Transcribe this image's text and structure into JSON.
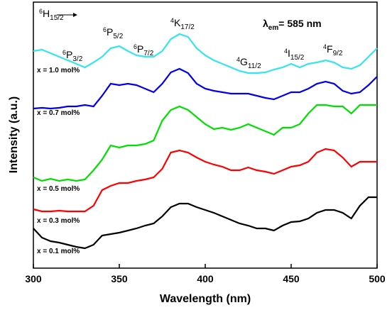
{
  "chart_data": {
    "type": "line",
    "xlabel": "Wavelength (nm)",
    "ylabel": "Intensity (a.u.)",
    "xlim": [
      300,
      500
    ],
    "ylim": [
      0,
      375
    ],
    "xticks": [
      300,
      350,
      400,
      450,
      500
    ],
    "x": [
      300,
      305,
      310,
      315,
      320,
      325,
      330,
      335,
      340,
      345,
      350,
      355,
      360,
      365,
      370,
      375,
      380,
      385,
      390,
      395,
      400,
      405,
      410,
      415,
      420,
      425,
      430,
      435,
      440,
      445,
      450,
      455,
      460,
      465,
      470,
      475,
      480,
      485,
      490,
      495,
      500
    ],
    "series": [
      {
        "name": "x = 0.1 mol%",
        "color": "#000000",
        "values": [
          56,
          43,
          38,
          36,
          33,
          30,
          28,
          33,
          46,
          48,
          50,
          53,
          56,
          60,
          63,
          73,
          86,
          91,
          91,
          86,
          82,
          78,
          73,
          68,
          63,
          60,
          56,
          56,
          53,
          60,
          65,
          66,
          70,
          78,
          82,
          82,
          78,
          70,
          88,
          100,
          100
        ]
      },
      {
        "name": "x = 0.3 mol%",
        "color": "#ff0000",
        "values": [
          83,
          80,
          80,
          81,
          80,
          80,
          80,
          88,
          110,
          116,
          120,
          120,
          123,
          125,
          128,
          140,
          163,
          166,
          163,
          156,
          150,
          146,
          143,
          138,
          138,
          142,
          138,
          136,
          133,
          138,
          143,
          145,
          150,
          163,
          168,
          166,
          156,
          143,
          150,
          150,
          150
        ]
      },
      {
        "name": "x = 0.5 mol%",
        "color": "#00e000",
        "values": [
          128,
          123,
          126,
          123,
          125,
          123,
          125,
          138,
          153,
          173,
          170,
          173,
          173,
          175,
          180,
          208,
          223,
          228,
          223,
          213,
          203,
          196,
          198,
          195,
          198,
          203,
          198,
          193,
          188,
          198,
          198,
          203,
          218,
          230,
          230,
          228,
          228,
          218,
          230,
          230,
          230
        ]
      },
      {
        "name": "x = 0.7 mol%",
        "color": "#0000ee",
        "values": [
          225,
          226,
          225,
          226,
          228,
          228,
          230,
          228,
          243,
          260,
          258,
          260,
          258,
          253,
          248,
          260,
          276,
          281,
          275,
          260,
          253,
          250,
          248,
          246,
          246,
          246,
          243,
          240,
          238,
          243,
          248,
          248,
          253,
          260,
          263,
          260,
          250,
          246,
          248,
          258,
          270
        ]
      },
      {
        "name": "x = 1.0 mol%",
        "color": "#33e5f0",
        "values": [
          306,
          308,
          303,
          298,
          293,
          288,
          283,
          290,
          298,
          310,
          313,
          306,
          300,
          298,
          298,
          306,
          323,
          330,
          326,
          310,
          300,
          293,
          288,
          283,
          278,
          275,
          275,
          276,
          280,
          283,
          288,
          283,
          288,
          290,
          293,
          290,
          283,
          281,
          286,
          298,
          310
        ]
      }
    ],
    "annotations": [
      {
        "sup": "6",
        "base": "H",
        "sub": "15/2"
      },
      {
        "sup": "6",
        "base": "P",
        "sub": "3/2"
      },
      {
        "sup": "6",
        "base": "P",
        "sub": "5/2"
      },
      {
        "sup": "6",
        "base": "P",
        "sub": "7/2"
      },
      {
        "sup": "4",
        "base": "K",
        "sub": "17/2"
      },
      {
        "sup": "4",
        "base": "G",
        "sub": "11/2"
      },
      {
        "sup": "4",
        "base": "I",
        "sub": "15/2"
      },
      {
        "sup": "4",
        "base": "F",
        "sub": "9/2"
      }
    ],
    "emission_label": {
      "base": "λ",
      "sub": "em",
      "rest": "= 585 nm"
    }
  }
}
